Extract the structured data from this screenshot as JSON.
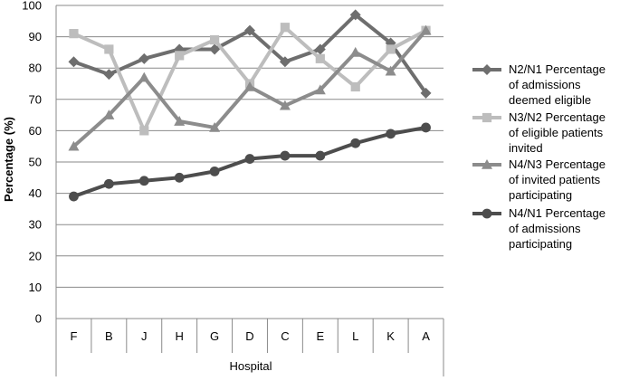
{
  "chart_data": {
    "type": "line",
    "categories": [
      "F",
      "B",
      "J",
      "H",
      "G",
      "D",
      "C",
      "E",
      "L",
      "K",
      "A"
    ],
    "xlabel": "Hospital",
    "ylabel": "Percentage (%)",
    "ylim": [
      0,
      100
    ],
    "yticks": [
      0,
      10,
      20,
      30,
      40,
      50,
      60,
      70,
      80,
      90,
      100
    ],
    "grid": "horizontal",
    "legend_position": "right",
    "series": [
      {
        "name": "N2/N1 Percentage of admissions deemed eligible",
        "legend_lines": [
          "N2/N1 Percentage",
          "of admissions",
          "deemed eligible"
        ],
        "marker": "diamond",
        "color": "#6e6e6e",
        "values": [
          82,
          78,
          83,
          86,
          86,
          92,
          82,
          86,
          97,
          88,
          72
        ]
      },
      {
        "name": "N3/N2 Percentage of eligible patients invited",
        "legend_lines": [
          "N3/N2 Percentage",
          "of eligible patients",
          "invited"
        ],
        "marker": "square",
        "color": "#bdbdbd",
        "values": [
          91,
          86,
          60,
          84,
          89,
          75,
          93,
          83,
          74,
          86,
          92
        ]
      },
      {
        "name": "N4/N3 Percentage of invited patients participating",
        "legend_lines": [
          "N4/N3 Percentage",
          "of invited patients",
          "participating"
        ],
        "marker": "triangle",
        "color": "#8c8c8c",
        "values": [
          55,
          65,
          77,
          63,
          61,
          74,
          68,
          73,
          85,
          79,
          92
        ]
      },
      {
        "name": "N4/N1 Percentage of admissions participating",
        "legend_lines": [
          "N4/N1 Percentage",
          "of admissions",
          "participating"
        ],
        "marker": "circle",
        "color": "#4d4d4d",
        "values": [
          39,
          43,
          44,
          45,
          47,
          51,
          52,
          52,
          56,
          59,
          61
        ]
      }
    ]
  }
}
